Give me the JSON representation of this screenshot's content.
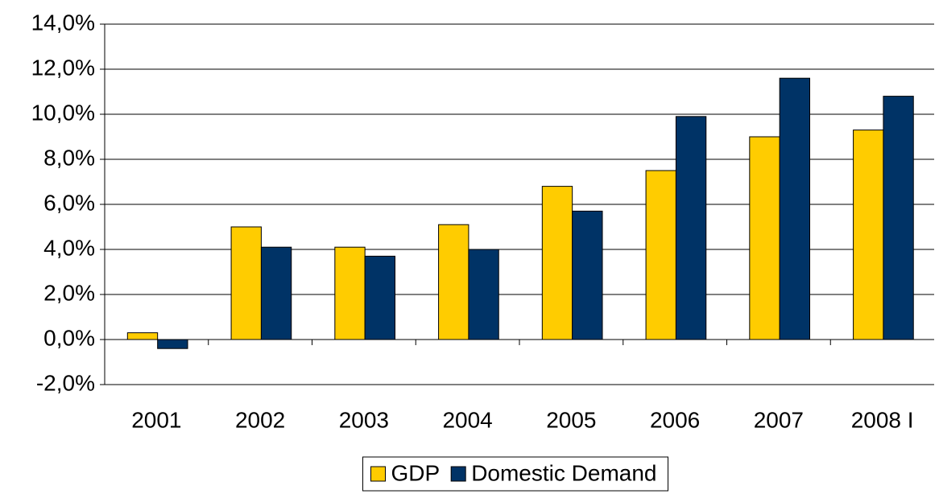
{
  "chart_data": {
    "type": "bar",
    "categories": [
      "2001",
      "2002",
      "2003",
      "2004",
      "2005",
      "2006",
      "2007",
      "2008 I"
    ],
    "series": [
      {
        "name": "GDP",
        "color": "#ffcc00",
        "values": [
          0.3,
          5.0,
          4.1,
          5.1,
          6.8,
          7.5,
          9.0,
          9.3
        ]
      },
      {
        "name": "Domestic Demand",
        "color": "#003366",
        "values": [
          -0.4,
          4.1,
          3.7,
          4.0,
          5.7,
          9.9,
          11.6,
          10.8
        ]
      }
    ],
    "ylim": [
      -2,
      14
    ],
    "yticks": [
      {
        "value": -2,
        "label": "-2,0%"
      },
      {
        "value": 0,
        "label": "0,0%"
      },
      {
        "value": 2,
        "label": "2,0%"
      },
      {
        "value": 4,
        "label": "4,0%"
      },
      {
        "value": 6,
        "label": "6,0%"
      },
      {
        "value": 8,
        "label": "8,0%"
      },
      {
        "value": 10,
        "label": "10,0%"
      },
      {
        "value": 12,
        "label": "12,0%"
      },
      {
        "value": 14,
        "label": "14,0%"
      }
    ],
    "grid": true,
    "legend": "bottom"
  }
}
